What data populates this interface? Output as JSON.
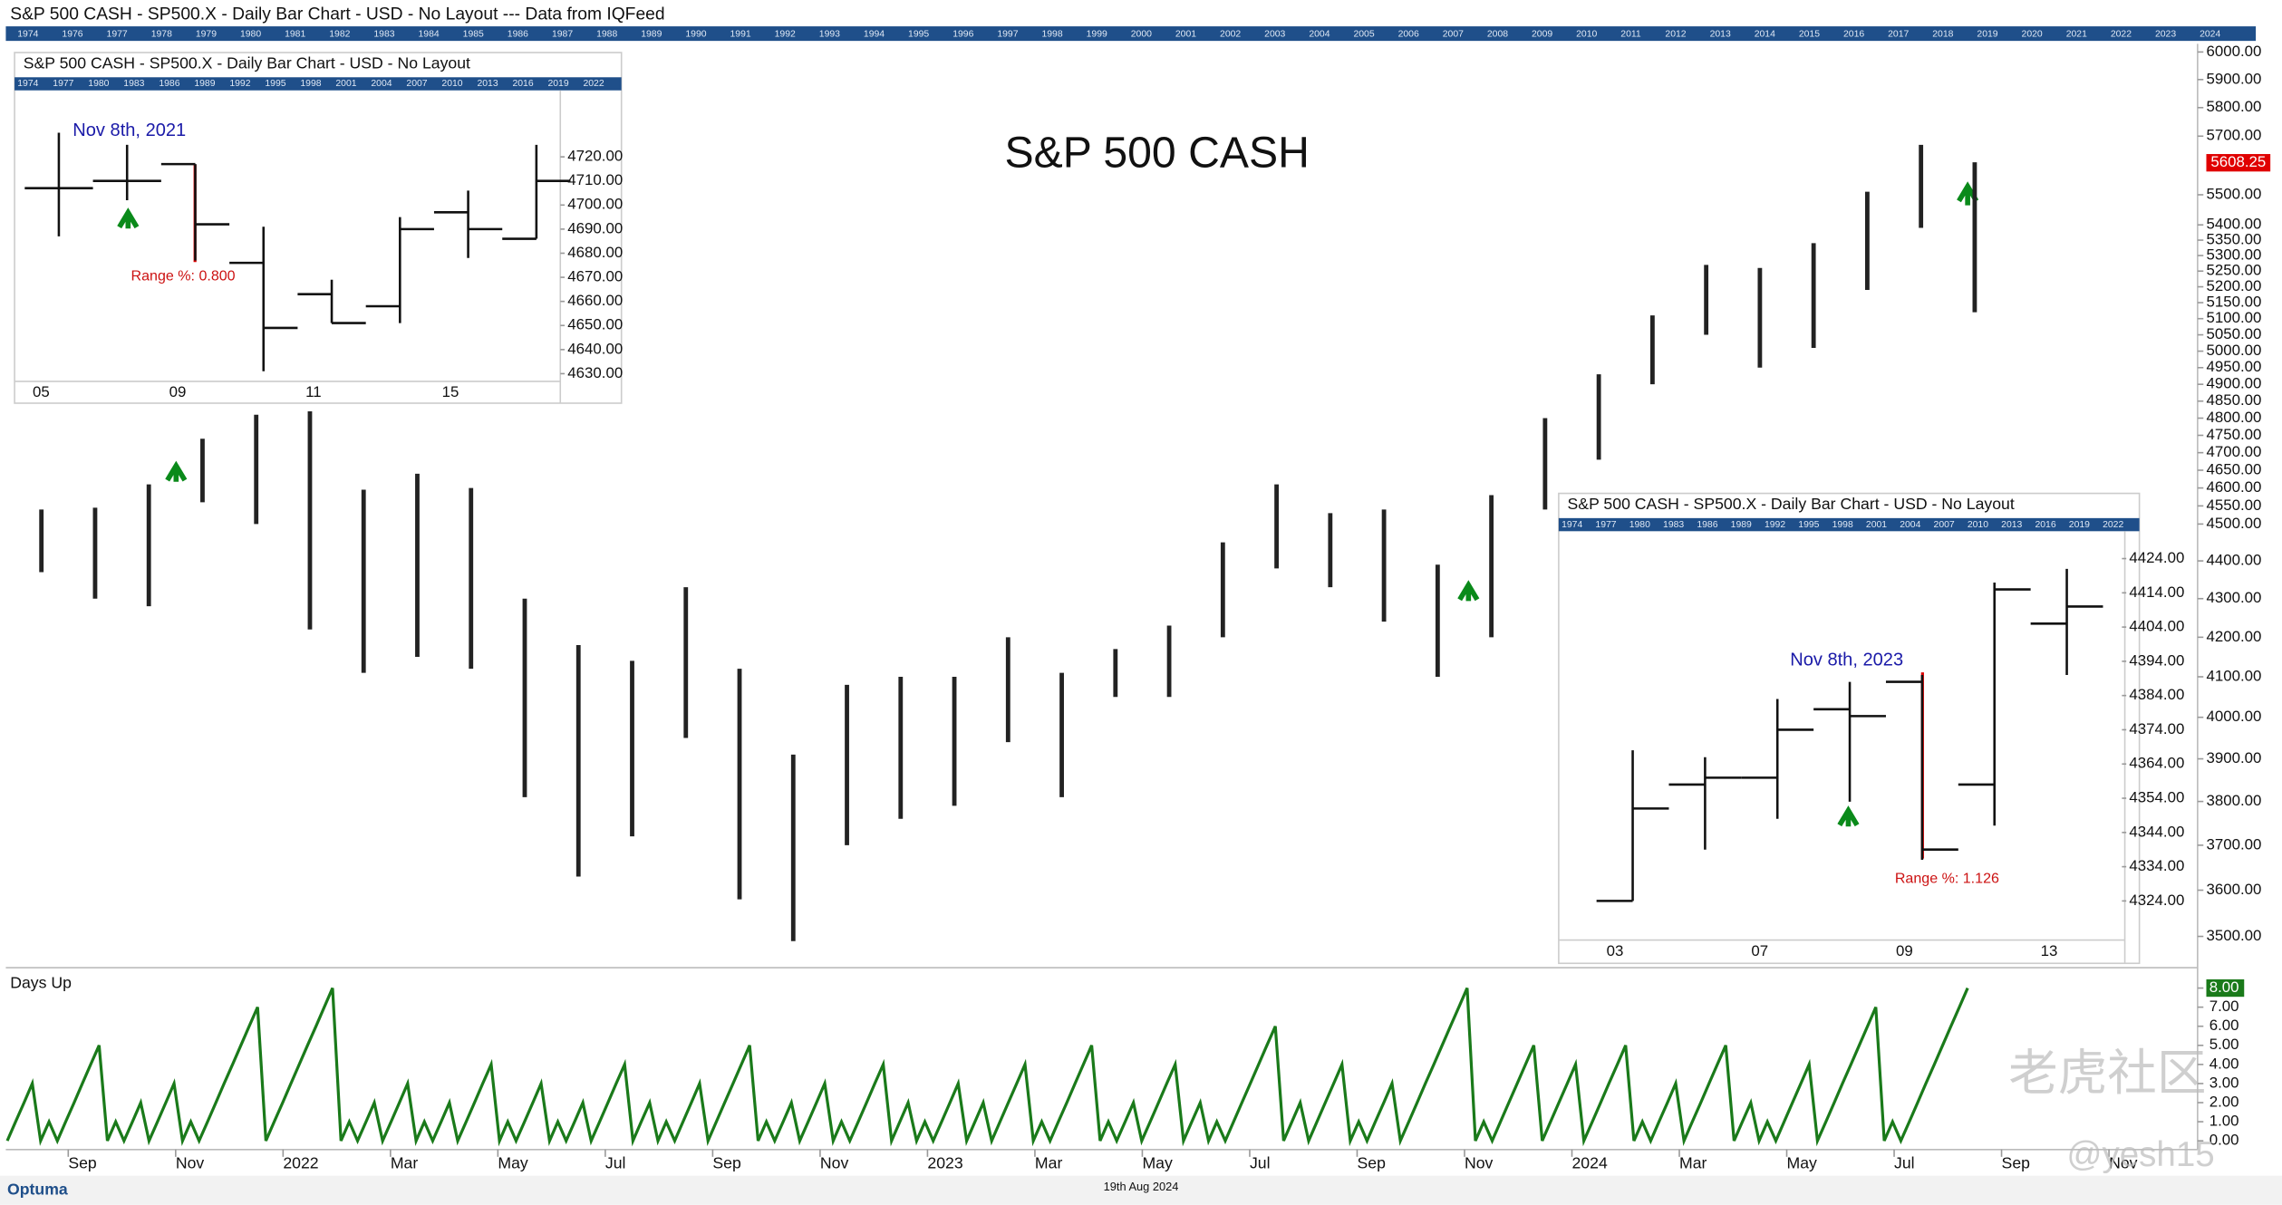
{
  "header": "S&P 500 CASH - SP500.X - Daily Bar Chart - USD - No Layout --- Data from IQFeed",
  "timeline_years": [
    "1974",
    "1976",
    "1977",
    "1978",
    "1979",
    "1980",
    "1981",
    "1982",
    "1983",
    "1984",
    "1985",
    "1986",
    "1987",
    "1988",
    "1989",
    "1990",
    "1991",
    "1992",
    "1993",
    "1994",
    "1995",
    "1996",
    "1997",
    "1998",
    "1999",
    "2000",
    "2001",
    "2002",
    "2003",
    "2004",
    "2005",
    "2006",
    "2007",
    "2008",
    "2009",
    "2010",
    "2011",
    "2012",
    "2013",
    "2014",
    "2015",
    "2016",
    "2017",
    "2018",
    "2019",
    "2020",
    "2021",
    "2022",
    "2023",
    "2024"
  ],
  "chart_data": [
    {
      "type": "ohlc",
      "title": "S&P 500 CASH",
      "x": [
        "2021-08",
        "2021-09",
        "2021-10",
        "2021-11",
        "2021-12",
        "2022-01",
        "2022-02",
        "2022-03",
        "2022-04",
        "2022-05",
        "2022-06",
        "2022-07",
        "2022-08",
        "2022-09",
        "2022-10",
        "2022-11",
        "2022-12",
        "2023-01",
        "2023-02",
        "2023-03",
        "2023-04",
        "2023-05",
        "2023-06",
        "2023-07",
        "2023-08",
        "2023-09",
        "2023-10",
        "2023-11",
        "2023-12",
        "2024-01",
        "2024-02",
        "2024-03",
        "2024-04",
        "2024-05",
        "2024-06",
        "2024-07",
        "2024-08"
      ],
      "high": [
        4540,
        4545,
        4610,
        4740,
        4810,
        4820,
        4595,
        4640,
        4600,
        4300,
        4180,
        4140,
        4330,
        4120,
        3910,
        4080,
        4100,
        4100,
        4200,
        4110,
        4170,
        4230,
        4450,
        4610,
        4530,
        4540,
        4390,
        4580,
        4800,
        4930,
        5110,
        5270,
        5260,
        5340,
        5510,
        5670,
        5610
      ],
      "low": [
        4370,
        4300,
        4280,
        4560,
        4500,
        4220,
        4110,
        4150,
        4120,
        3810,
        3630,
        3720,
        3950,
        3580,
        3490,
        3700,
        3760,
        3790,
        3940,
        3810,
        4050,
        4050,
        4200,
        4380,
        4330,
        4240,
        4100,
        4200,
        4540,
        4680,
        4900,
        5050,
        4950,
        5010,
        5190,
        5390,
        5120
      ],
      "color": "#222222",
      "xlim": [
        "2021-08",
        "2024-12"
      ],
      "xticks": [
        {
          "value": "2021-09",
          "label": "Sep"
        },
        {
          "value": "2021-11",
          "label": "Nov"
        },
        {
          "value": "2022-01",
          "label": "2022"
        },
        {
          "value": "2022-03",
          "label": "Mar"
        },
        {
          "value": "2022-05",
          "label": "May"
        },
        {
          "value": "2022-07",
          "label": "Jul"
        },
        {
          "value": "2022-09",
          "label": "Sep"
        },
        {
          "value": "2022-11",
          "label": "Nov"
        },
        {
          "value": "2023-01",
          "label": "2023"
        },
        {
          "value": "2023-03",
          "label": "Mar"
        },
        {
          "value": "2023-05",
          "label": "May"
        },
        {
          "value": "2023-07",
          "label": "Jul"
        },
        {
          "value": "2023-09",
          "label": "Sep"
        },
        {
          "value": "2023-11",
          "label": "Nov"
        },
        {
          "value": "2024-01",
          "label": "2024"
        },
        {
          "value": "2024-03",
          "label": "Mar"
        },
        {
          "value": "2024-05",
          "label": "May"
        },
        {
          "value": "2024-07",
          "label": "Jul"
        },
        {
          "value": "2024-09",
          "label": "Sep"
        },
        {
          "value": "2024-11",
          "label": "Nov"
        }
      ],
      "ylim": [
        3440,
        6030
      ],
      "log_scale": true,
      "yticks": [
        {
          "value": 6000,
          "label": "6000.00"
        },
        {
          "value": 5900,
          "label": "5900.00"
        },
        {
          "value": 5800,
          "label": "5800.00"
        },
        {
          "value": 5700,
          "label": "5700.00"
        },
        {
          "value": 5500,
          "label": "5500.00"
        },
        {
          "value": 5400,
          "label": "5400.00"
        },
        {
          "value": 5350,
          "label": "5350.00"
        },
        {
          "value": 5300,
          "label": "5300.00"
        },
        {
          "value": 5250,
          "label": "5250.00"
        },
        {
          "value": 5200,
          "label": "5200.00"
        },
        {
          "value": 5150,
          "label": "5150.00"
        },
        {
          "value": 5100,
          "label": "5100.00"
        },
        {
          "value": 5050,
          "label": "5050.00"
        },
        {
          "value": 5000,
          "label": "5000.00"
        },
        {
          "value": 4950,
          "label": "4950.00"
        },
        {
          "value": 4900,
          "label": "4900.00"
        },
        {
          "value": 4850,
          "label": "4850.00"
        },
        {
          "value": 4800,
          "label": "4800.00"
        },
        {
          "value": 4750,
          "label": "4750.00"
        },
        {
          "value": 4700,
          "label": "4700.00"
        },
        {
          "value": 4650,
          "label": "4650.00"
        },
        {
          "value": 4600,
          "label": "4600.00"
        },
        {
          "value": 4550,
          "label": "4550.00"
        },
        {
          "value": 4500,
          "label": "4500.00"
        },
        {
          "value": 4400,
          "label": "4400.00"
        },
        {
          "value": 4300,
          "label": "4300.00"
        },
        {
          "value": 4200,
          "label": "4200.00"
        },
        {
          "value": 4100,
          "label": "4100.00"
        },
        {
          "value": 4000,
          "label": "4000.00"
        },
        {
          "value": 3900,
          "label": "3900.00"
        },
        {
          "value": 3800,
          "label": "3800.00"
        },
        {
          "value": 3700,
          "label": "3700.00"
        },
        {
          "value": 3600,
          "label": "3600.00"
        },
        {
          "value": 3500,
          "label": "3500.00"
        }
      ],
      "last_value": {
        "value": 5608.25,
        "label": "5608.25"
      },
      "last_value_color": "#e00000"
    },
    {
      "type": "line",
      "title": "Days Up",
      "values": [
        0,
        1,
        2,
        3,
        0,
        1,
        0,
        1,
        2,
        3,
        4,
        5,
        0,
        1,
        0,
        1,
        2,
        0,
        1,
        2,
        3,
        0,
        1,
        0,
        1,
        2,
        3,
        4,
        5,
        6,
        7,
        0,
        1,
        2,
        3,
        4,
        5,
        6,
        7,
        8,
        0,
        1,
        0,
        1,
        2,
        0,
        1,
        2,
        3,
        0,
        1,
        0,
        1,
        2,
        0,
        1,
        2,
        3,
        4,
        0,
        1,
        0,
        1,
        2,
        3,
        0,
        1,
        0,
        1,
        2,
        0,
        1,
        2,
        3,
        4,
        0,
        1,
        2,
        0,
        1,
        0,
        1,
        2,
        3,
        0,
        1,
        2,
        3,
        4,
        5,
        0,
        1,
        0,
        1,
        2,
        0,
        1,
        2,
        3,
        0,
        1,
        0,
        1,
        2,
        3,
        4,
        0,
        1,
        2,
        0,
        1,
        0,
        1,
        2,
        3,
        0,
        1,
        2,
        0,
        1,
        2,
        3,
        4,
        0,
        1,
        0,
        1,
        2,
        3,
        4,
        5,
        0,
        1,
        0,
        1,
        2,
        0,
        1,
        2,
        3,
        4,
        0,
        1,
        2,
        0,
        1,
        0,
        1,
        2,
        3,
        4,
        5,
        6,
        0,
        1,
        2,
        0,
        1,
        2,
        3,
        4,
        0,
        1,
        0,
        1,
        2,
        3,
        0,
        1,
        2,
        3,
        4,
        5,
        6,
        7,
        8,
        0,
        1,
        0,
        1,
        2,
        3,
        4,
        5,
        0,
        1,
        2,
        3,
        4,
        0,
        1,
        2,
        3,
        4,
        5,
        0,
        1,
        0,
        1,
        2,
        3,
        0,
        1,
        2,
        3,
        4,
        5,
        0,
        1,
        2,
        0,
        1,
        0,
        1,
        2,
        3,
        4,
        0,
        1,
        2,
        3,
        4,
        5,
        6,
        7,
        0,
        1,
        0,
        1,
        2,
        3,
        4,
        5,
        6,
        7,
        8
      ],
      "color": "#1a7a1a",
      "ylim": [
        0,
        8
      ],
      "yticks": [
        {
          "value": 0,
          "label": "0.00"
        },
        {
          "value": 1,
          "label": "1.00"
        },
        {
          "value": 2,
          "label": "2.00"
        },
        {
          "value": 3,
          "label": "3.00"
        },
        {
          "value": 4,
          "label": "4.00"
        },
        {
          "value": 5,
          "label": "5.00"
        },
        {
          "value": 6,
          "label": "6.00"
        },
        {
          "value": 7,
          "label": "7.00"
        },
        {
          "value": 8,
          "label": "8.00"
        }
      ]
    },
    {
      "type": "ohlc",
      "title": "S&P 500 CASH - SP500.X - Daily Bar Chart - USD - No Layout",
      "categories": [
        "05",
        null,
        "09",
        null,
        "11",
        null,
        "15",
        null
      ],
      "open": [
        4707,
        4710,
        4717,
        4676,
        4663,
        4658,
        4697,
        4686
      ],
      "high": [
        4730,
        4725,
        4717,
        4691,
        4669,
        4695,
        4706,
        4725
      ],
      "low": [
        4687,
        4702,
        4677,
        4631,
        4651,
        4651,
        4678,
        4686
      ],
      "close": [
        4707,
        4710,
        4692,
        4649,
        4651,
        4690,
        4690,
        4710
      ],
      "color": "#111111",
      "ylim": [
        4625,
        4747
      ],
      "yticks": [
        {
          "value": 4630,
          "label": "4630.00"
        },
        {
          "value": 4640,
          "label": "4640.00"
        },
        {
          "value": 4650,
          "label": "4650.00"
        },
        {
          "value": 4660,
          "label": "4660.00"
        },
        {
          "value": 4670,
          "label": "4670.00"
        },
        {
          "value": 4680,
          "label": "4680.00"
        },
        {
          "value": 4690,
          "label": "4690.00"
        },
        {
          "value": 4700,
          "label": "4700.00"
        },
        {
          "value": 4710,
          "label": "4710.00"
        },
        {
          "value": 4720,
          "label": "4720.00"
        }
      ],
      "annotations": [
        "Nov 8th, 2021",
        "Range %: 0.800"
      ],
      "timeline_years": [
        "1974",
        "1977",
        "1980",
        "1983",
        "1986",
        "1989",
        "1992",
        "1995",
        "1998",
        "2001",
        "2004",
        "2007",
        "2010",
        "2013",
        "2016",
        "2019",
        "2022"
      ]
    },
    {
      "type": "ohlc",
      "title": "S&P 500 CASH - SP500.X - Daily Bar Chart - USD - No Layout",
      "categories": [
        "03",
        null,
        "07",
        null,
        "09",
        null,
        "13"
      ],
      "open": [
        4324,
        4358,
        4360,
        4380,
        4388,
        4358,
        4405
      ],
      "high": [
        4368,
        4366,
        4383,
        4388,
        4390,
        4417,
        4421
      ],
      "low": [
        4324,
        4339,
        4348,
        4353,
        4336,
        4346,
        4390
      ],
      "close": [
        4351,
        4360,
        4374,
        4378,
        4339,
        4415,
        4410
      ],
      "color": "#111111",
      "ylim": [
        4313,
        4432
      ],
      "yticks": [
        {
          "value": 4324,
          "label": "4324.00"
        },
        {
          "value": 4334,
          "label": "4334.00"
        },
        {
          "value": 4344,
          "label": "4344.00"
        },
        {
          "value": 4354,
          "label": "4354.00"
        },
        {
          "value": 4364,
          "label": "4364.00"
        },
        {
          "value": 4374,
          "label": "4374.00"
        },
        {
          "value": 4384,
          "label": "4384.00"
        },
        {
          "value": 4394,
          "label": "4394.00"
        },
        {
          "value": 4404,
          "label": "4404.00"
        },
        {
          "value": 4414,
          "label": "4414.00"
        },
        {
          "value": 4424,
          "label": "4424.00"
        }
      ],
      "annotations": [
        "Nov 8th, 2023",
        "Range %: 1.126"
      ],
      "timeline_years": [
        "1974",
        "1977",
        "1980",
        "1983",
        "1986",
        "1989",
        "1992",
        "1995",
        "1998",
        "2001",
        "2004",
        "2007",
        "2010",
        "2013",
        "2016",
        "2019",
        "2022"
      ]
    }
  ],
  "footer": {
    "logo": "Optuma",
    "date": "19th Aug 2024"
  },
  "watermarks": [
    "老虎社区",
    "@yesh15"
  ]
}
